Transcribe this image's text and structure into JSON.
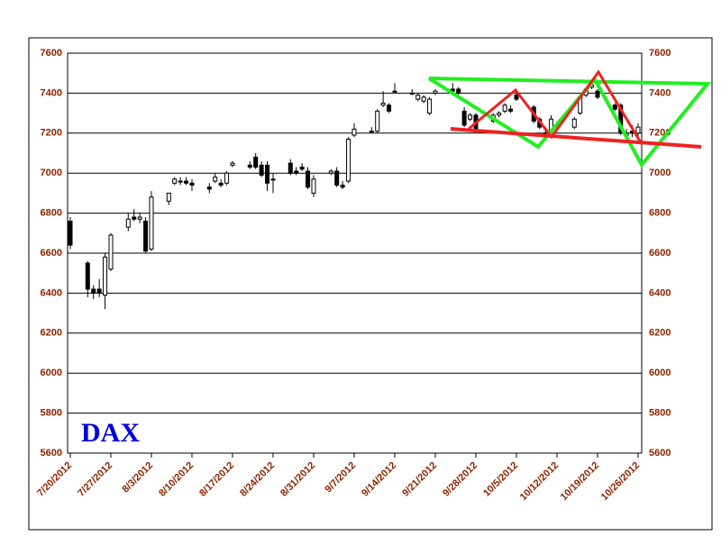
{
  "chart_data": {
    "type": "candlestick",
    "title": "DAX",
    "x": [
      "7/20/2012",
      "7/23/2012",
      "7/24/2012",
      "7/25/2012",
      "7/26/2012",
      "7/27/2012",
      "7/30/2012",
      "7/31/2012",
      "8/1/2012",
      "8/2/2012",
      "8/3/2012",
      "8/6/2012",
      "8/7/2012",
      "8/8/2012",
      "8/9/2012",
      "8/10/2012",
      "8/13/2012",
      "8/14/2012",
      "8/15/2012",
      "8/16/2012",
      "8/17/2012",
      "8/20/2012",
      "8/21/2012",
      "8/22/2012",
      "8/23/2012",
      "8/24/2012",
      "8/27/2012",
      "8/28/2012",
      "8/29/2012",
      "8/30/2012",
      "8/31/2012",
      "9/3/2012",
      "9/4/2012",
      "9/5/2012",
      "9/6/2012",
      "9/7/2012",
      "9/10/2012",
      "9/11/2012",
      "9/12/2012",
      "9/13/2012",
      "9/14/2012",
      "9/17/2012",
      "9/18/2012",
      "9/19/2012",
      "9/20/2012",
      "9/21/2012",
      "9/24/2012",
      "9/25/2012",
      "9/26/2012",
      "9/27/2012",
      "9/28/2012",
      "10/1/2012",
      "10/2/2012",
      "10/3/2012",
      "10/4/2012",
      "10/5/2012",
      "10/8/2012",
      "10/9/2012",
      "10/10/2012",
      "10/11/2012",
      "10/12/2012",
      "10/15/2012",
      "10/16/2012",
      "10/17/2012",
      "10/18/2012",
      "10/19/2012",
      "10/22/2012",
      "10/23/2012",
      "10/24/2012",
      "10/25/2012",
      "10/26/2012"
    ],
    "open": [
      6760,
      6550,
      6420,
      6420,
      6390,
      6520,
      6730,
      6780,
      6770,
      6760,
      6620,
      6860,
      6950,
      6960,
      6960,
      6950,
      6930,
      6960,
      6950,
      6950,
      7040,
      7040,
      7080,
      7040,
      7040,
      6970,
      7050,
      7010,
      7030,
      7010,
      6900,
      7000,
      7010,
      6940,
      6960,
      7190,
      7210,
      7210,
      7340,
      7340,
      7410,
      7400,
      7370,
      7360,
      7300,
      7400,
      7420,
      7420,
      7310,
      7270,
      7290,
      7260,
      7290,
      7310,
      7320,
      7390,
      7330,
      7270,
      7200,
      7210,
      7240,
      7230,
      7300,
      7390,
      7430,
      7410,
      7340,
      7340,
      7190,
      7210,
      7200
    ],
    "high": [
      6780,
      6560,
      6440,
      6470,
      6600,
      6700,
      6800,
      6820,
      6800,
      6780,
      6910,
      6900,
      6980,
      6980,
      6980,
      6970,
      6950,
      7000,
      6970,
      7010,
      7060,
      7060,
      7100,
      7060,
      7060,
      7000,
      7070,
      7030,
      7050,
      7030,
      6990,
      7020,
      7030,
      6960,
      7180,
      7250,
      7230,
      7320,
      7410,
      7350,
      7450,
      7420,
      7400,
      7390,
      7380,
      7420,
      7450,
      7430,
      7330,
      7300,
      7300,
      7300,
      7310,
      7350,
      7340,
      7400,
      7340,
      7280,
      7220,
      7290,
      7260,
      7280,
      7390,
      7430,
      7450,
      7420,
      7350,
      7350,
      7220,
      7240,
      7250
    ],
    "low": [
      6620,
      6380,
      6370,
      6380,
      6320,
      6510,
      6710,
      6760,
      6750,
      6600,
      6610,
      6840,
      6940,
      6940,
      6940,
      6910,
      6900,
      6950,
      6930,
      6940,
      7030,
      7020,
      7020,
      6980,
      6910,
      6900,
      6990,
      6990,
      7010,
      6920,
      6880,
      6990,
      6930,
      6920,
      6950,
      7180,
      7200,
      7200,
      7330,
      7300,
      7400,
      7390,
      7360,
      7350,
      7290,
      7390,
      7400,
      7390,
      7230,
      7260,
      7210,
      7250,
      7280,
      7300,
      7300,
      7360,
      7250,
      7220,
      7180,
      7200,
      7220,
      7220,
      7290,
      7380,
      7420,
      7370,
      7310,
      7190,
      7150,
      7180,
      7180
    ],
    "close": [
      6640,
      6420,
      6400,
      6400,
      6580,
      6690,
      6770,
      6770,
      6780,
      6610,
      6880,
      6900,
      6970,
      6960,
      6950,
      6940,
      6920,
      6980,
      6940,
      7000,
      7050,
      7030,
      7030,
      6990,
      6950,
      6970,
      7000,
      7000,
      7020,
      6930,
      6970,
      7010,
      6940,
      6930,
      7170,
      7220,
      7210,
      7310,
      7350,
      7310,
      7410,
      7400,
      7390,
      7380,
      7370,
      7410,
      7410,
      7400,
      7240,
      7290,
      7220,
      7290,
      7300,
      7340,
      7310,
      7370,
      7260,
      7230,
      7200,
      7270,
      7230,
      7270,
      7380,
      7420,
      7440,
      7380,
      7320,
      7200,
      7200,
      7200,
      7230
    ],
    "xticks": [
      "7/20/2012",
      "7/27/2012",
      "8/3/2012",
      "8/10/2012",
      "8/17/2012",
      "8/24/2012",
      "8/31/2012",
      "9/7/2012",
      "9/14/2012",
      "9/21/2012",
      "9/28/2012",
      "10/5/2012",
      "10/12/2012",
      "10/19/2012",
      "10/26/2012"
    ],
    "ylim": [
      5600,
      7600
    ],
    "yticks": [
      5600,
      5800,
      6000,
      6200,
      6400,
      6600,
      6800,
      7000,
      7200,
      7400,
      7600
    ],
    "grid": true
  }
}
